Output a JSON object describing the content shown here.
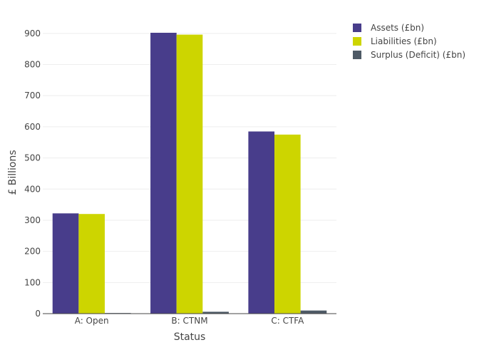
{
  "chart_data": {
    "type": "bar",
    "title": "",
    "xlabel": "Status",
    "ylabel": "£ Billions",
    "categories": [
      "A: Open",
      "B: CTNM",
      "C: CTFA"
    ],
    "series": [
      {
        "name": "Assets (£bn)",
        "color": "#483d8b",
        "values": [
          322,
          902,
          585
        ]
      },
      {
        "name": "Liabilities (£bn)",
        "color": "#cdd500",
        "values": [
          320,
          896,
          575
        ]
      },
      {
        "name": "Surplus (Deficit) (£bn)",
        "color": "#4e5a66",
        "values": [
          2,
          6,
          10
        ]
      }
    ],
    "ylim": [
      0,
      950
    ],
    "yticks": [
      0,
      100,
      200,
      300,
      400,
      500,
      600,
      700,
      800,
      900
    ],
    "grid": true,
    "legend": "top-right"
  }
}
